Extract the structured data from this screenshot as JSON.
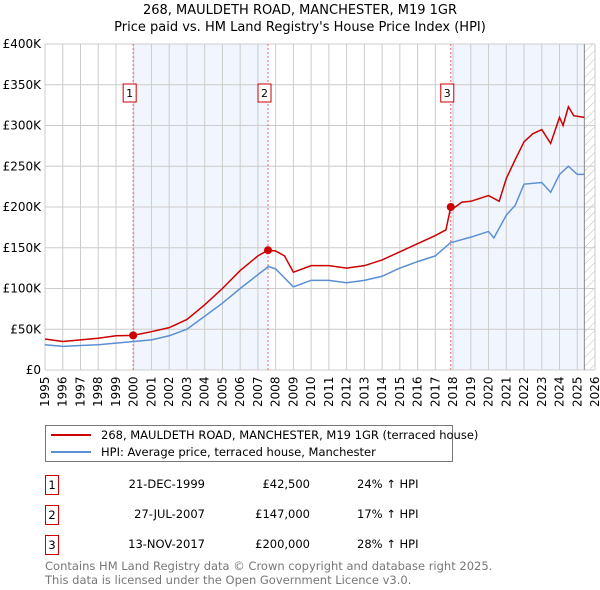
{
  "chart_data": {
    "type": "line",
    "title": "268, MAULDETH ROAD, MANCHESTER, M19 1GR",
    "subtitle": "Price paid vs. HM Land Registry's House Price Index (HPI)",
    "xlim": [
      1995,
      2026
    ],
    "ylim": [
      0,
      400000
    ],
    "yticks": [
      {
        "v": 0,
        "label": "£0"
      },
      {
        "v": 50000,
        "label": "£50K"
      },
      {
        "v": 100000,
        "label": "£100K"
      },
      {
        "v": 150000,
        "label": "£150K"
      },
      {
        "v": 200000,
        "label": "£200K"
      },
      {
        "v": 250000,
        "label": "£250K"
      },
      {
        "v": 300000,
        "label": "£300K"
      },
      {
        "v": 350000,
        "label": "£350K"
      },
      {
        "v": 400000,
        "label": "£400K"
      }
    ],
    "xticks": [
      "1995",
      "1996",
      "1997",
      "1998",
      "1999",
      "2000",
      "2001",
      "2002",
      "2003",
      "2004",
      "2005",
      "2006",
      "2007",
      "2008",
      "2009",
      "2010",
      "2011",
      "2012",
      "2013",
      "2014",
      "2015",
      "2016",
      "2017",
      "2018",
      "2019",
      "2020",
      "2021",
      "2022",
      "2023",
      "2024",
      "2025",
      "2026"
    ],
    "grid": true,
    "series": [
      {
        "name": "268, MAULDETH ROAD, MANCHESTER, M19 1GR (terraced house)",
        "color": "#cc0000",
        "x": [
          1995,
          1996,
          1997,
          1998,
          1999,
          1999.97,
          2001,
          2002,
          2003,
          2004,
          2005,
          2006,
          2007,
          2007.57,
          2008,
          2008.5,
          2009,
          2010,
          2011,
          2012,
          2013,
          2014,
          2015,
          2016,
          2017,
          2017.6,
          2017.87,
          2018,
          2018.5,
          2019,
          2020,
          2020.6,
          2021,
          2021.5,
          2022,
          2022.5,
          2023,
          2023.5,
          2024,
          2024.2,
          2024.5,
          2024.8,
          2025.4
        ],
        "y": [
          38000,
          35000,
          37000,
          39000,
          42000,
          42500,
          47000,
          52000,
          62000,
          80000,
          100000,
          122000,
          140000,
          147000,
          146000,
          140000,
          120000,
          128000,
          128000,
          125000,
          128000,
          135000,
          145000,
          155000,
          165000,
          172000,
          200000,
          198000,
          206000,
          207000,
          214000,
          207000,
          235000,
          258000,
          280000,
          290000,
          295000,
          278000,
          310000,
          300000,
          323000,
          312000,
          310000
        ]
      },
      {
        "name": "HPI: Average price, terraced house, Manchester",
        "color": "#5b8fd4",
        "x": [
          1995,
          1996,
          1997,
          1998,
          1999,
          2000,
          2001,
          2002,
          2003,
          2004,
          2005,
          2006,
          2007,
          2007.6,
          2008,
          2009,
          2010,
          2011,
          2012,
          2013,
          2014,
          2015,
          2016,
          2017,
          2017.9,
          2018,
          2019,
          2020,
          2020.3,
          2021,
          2021.5,
          2022,
          2023,
          2023.5,
          2024,
          2024.5,
          2025,
          2025.4
        ],
        "y": [
          31000,
          29000,
          30000,
          31000,
          33000,
          35000,
          37000,
          42000,
          50000,
          66000,
          82000,
          100000,
          117000,
          127000,
          124000,
          102000,
          110000,
          110000,
          107000,
          110000,
          115000,
          125000,
          133000,
          140000,
          157000,
          157000,
          163000,
          170000,
          162000,
          190000,
          202000,
          228000,
          230000,
          218000,
          240000,
          250000,
          240000,
          240000
        ]
      }
    ],
    "sales": [
      {
        "n": "1",
        "x": 1999.97,
        "y": 42500
      },
      {
        "n": "2",
        "x": 2007.57,
        "y": 147000
      },
      {
        "n": "3",
        "x": 2017.87,
        "y": 200000
      }
    ],
    "shaded": [
      [
        1999.97,
        2007.57
      ],
      [
        2017.87,
        2025.4
      ]
    ],
    "hatched_from": 2025.4
  },
  "legend": {
    "property": "268, MAULDETH ROAD, MANCHESTER, M19 1GR (terraced house)",
    "hpi": "HPI: Average price, terraced house, Manchester"
  },
  "transactions": [
    {
      "n": "1",
      "date": "21-DEC-1999",
      "price": "£42,500",
      "hpi": "24% ↑ HPI"
    },
    {
      "n": "2",
      "date": "27-JUL-2007",
      "price": "£147,000",
      "hpi": "17% ↑ HPI"
    },
    {
      "n": "3",
      "date": "13-NOV-2017",
      "price": "£200,000",
      "hpi": "28% ↑ HPI"
    }
  ],
  "footer": {
    "line1": "Contains HM Land Registry data © Crown copyright and database right 2025.",
    "line2": "This data is licensed under the Open Government Licence v3.0."
  }
}
